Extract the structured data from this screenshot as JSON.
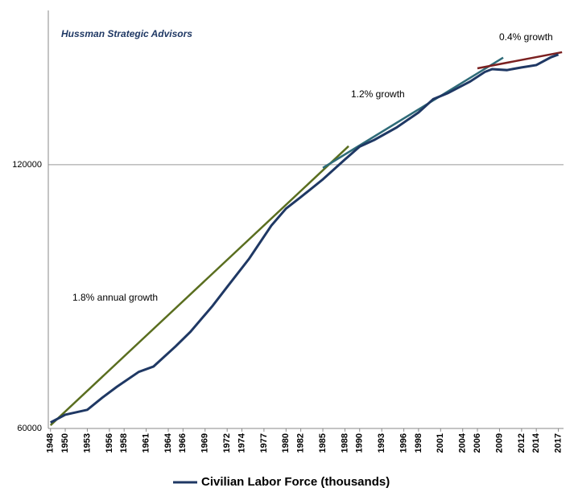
{
  "chart_data": {
    "type": "line",
    "watermark": "Hussman Strategic Advisors",
    "annotations": [
      "1.8% annual growth",
      "1.2% growth",
      "0.4% growth"
    ],
    "x": [
      1948,
      1950,
      1953,
      1955,
      1957,
      1960,
      1962,
      1965,
      1967,
      1970,
      1972,
      1975,
      1978,
      1980,
      1982,
      1985,
      1988,
      1990,
      1992,
      1995,
      1998,
      2000,
      2002,
      2005,
      2007,
      2008,
      2010,
      2012,
      2014,
      2016,
      2017
    ],
    "series": [
      {
        "name": "Civilian Labor Force (thousands)",
        "color": "#1f3864",
        "values": [
          60941,
          62208,
          63015,
          65023,
          66929,
          69628,
          70614,
          74455,
          77347,
          82771,
          87034,
          93775,
          102251,
          106940,
          110204,
          115461,
          121669,
          125840,
          128105,
          132304,
          137673,
          142583,
          144863,
          149320,
          153124,
          154287,
          153889,
          154975,
          155922,
          159187,
          160320
        ]
      }
    ],
    "trendlines": [
      {
        "color": "#5a6e1f",
        "x": [
          1948,
          1988.5
        ],
        "values": [
          60500,
          126000
        ]
      },
      {
        "color": "#2e6b78",
        "x": [
          1985,
          2009.5
        ],
        "values": [
          119000,
          159000
        ]
      },
      {
        "color": "#7b2020",
        "x": [
          2006,
          2017.5
        ],
        "values": [
          154600,
          161300
        ]
      }
    ],
    "log_scale": true,
    "xlim": [
      1947.7,
      2017.7
    ],
    "xticks": [
      1948,
      1950,
      1953,
      1956,
      1958,
      1961,
      1964,
      1966,
      1969,
      1972,
      1974,
      1977,
      1980,
      1982,
      1985,
      1988,
      1990,
      1993,
      1996,
      1998,
      2001,
      2004,
      2006,
      2009,
      2012,
      2014,
      2017
    ],
    "ylim": [
      60000,
      180000
    ],
    "yticks": [
      60000,
      120000
    ],
    "grid": true
  }
}
